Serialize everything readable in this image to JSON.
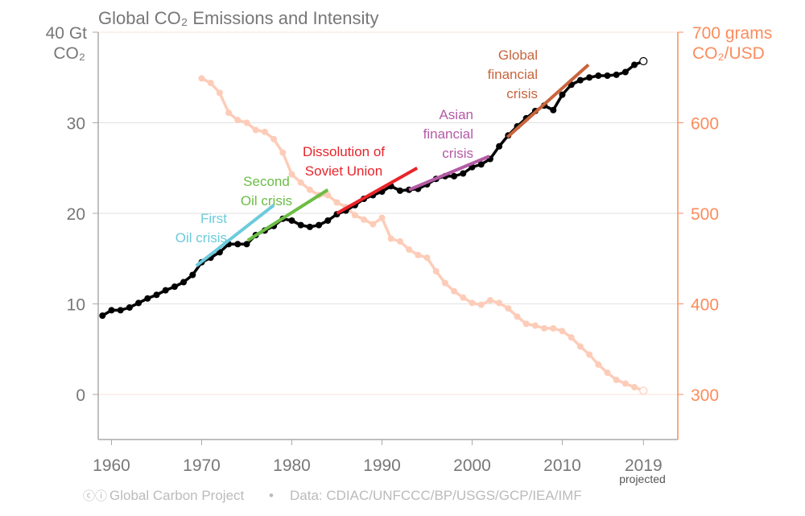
{
  "chart_data": {
    "type": "line",
    "title": "Global CO₂ Emissions and Intensity",
    "left_axis": {
      "label_line1": "40 Gt",
      "label_line2": "CO₂",
      "ticks": [
        0,
        10,
        20,
        30
      ],
      "top_tick": 40,
      "ylim": [
        -5,
        40
      ]
    },
    "right_axis": {
      "label_line1": "700 grams",
      "label_line2": "CO₂/USD",
      "ticks": [
        300,
        400,
        500,
        600
      ],
      "top_tick": 700,
      "ylim": [
        250,
        700
      ],
      "color": "#fb8c5c"
    },
    "x_axis": {
      "ticks": [
        "1960",
        "1970",
        "1980",
        "1990",
        "2000",
        "2010",
        "2019"
      ],
      "tick_values": [
        1960,
        1970,
        1980,
        1990,
        2000,
        2010,
        2019
      ],
      "sublabel": "projected",
      "xlim": [
        1958.7,
        2022.8
      ]
    },
    "grid": true,
    "series": [
      {
        "axis": "left",
        "color": "#000000",
        "x": [
          1959,
          1960,
          1961,
          1962,
          1963,
          1964,
          1965,
          1966,
          1967,
          1968,
          1969,
          1970,
          1971,
          1972,
          1973,
          1974,
          1975,
          1976,
          1977,
          1978,
          1979,
          1980,
          1981,
          1982,
          1983,
          1984,
          1985,
          1986,
          1987,
          1988,
          1989,
          1990,
          1991,
          1992,
          1993,
          1994,
          1995,
          1996,
          1997,
          1998,
          1999,
          2000,
          2001,
          2002,
          2003,
          2004,
          2005,
          2006,
          2007,
          2008,
          2009,
          2010,
          2011,
          2012,
          2013,
          2014,
          2015,
          2016,
          2017,
          2018,
          2019
        ],
        "values": [
          8.7,
          9.3,
          9.3,
          9.6,
          10.1,
          10.6,
          11.0,
          11.5,
          11.9,
          12.4,
          13.2,
          14.6,
          15.1,
          15.7,
          16.6,
          16.6,
          16.6,
          17.6,
          18.1,
          18.6,
          19.4,
          19.2,
          18.7,
          18.5,
          18.7,
          19.2,
          19.9,
          20.3,
          20.9,
          21.6,
          22.0,
          22.4,
          23.0,
          22.5,
          22.6,
          22.7,
          23.2,
          23.8,
          24.1,
          24.1,
          24.4,
          25.1,
          25.4,
          26.0,
          27.4,
          28.6,
          29.6,
          30.5,
          31.3,
          31.9,
          31.4,
          33.1,
          34.2,
          34.7,
          35.0,
          35.2,
          35.2,
          35.3,
          35.6,
          36.4,
          36.8
        ],
        "projected_last": true
      },
      {
        "axis": "right",
        "color": "#fdccb8",
        "x": [
          1970,
          1971,
          1972,
          1973,
          1974,
          1975,
          1976,
          1977,
          1978,
          1979,
          1980,
          1981,
          1982,
          1983,
          1984,
          1985,
          1986,
          1987,
          1988,
          1989,
          1990,
          1991,
          1992,
          1993,
          1994,
          1995,
          1996,
          1997,
          1998,
          1999,
          2000,
          2001,
          2002,
          2003,
          2004,
          2005,
          2006,
          2007,
          2008,
          2009,
          2010,
          2011,
          2012,
          2013,
          2014,
          2015,
          2016,
          2017,
          2018,
          2019
        ],
        "values": [
          649,
          644,
          633,
          611,
          603,
          600,
          592,
          590,
          582,
          567,
          543,
          534,
          526,
          520,
          520,
          512,
          507,
          498,
          493,
          488,
          495,
          472,
          469,
          460,
          454,
          451,
          436,
          423,
          414,
          407,
          401,
          399,
          404,
          401,
          395,
          386,
          378,
          376,
          373,
          373,
          370,
          363,
          353,
          344,
          333,
          324,
          316,
          312,
          308,
          304
        ],
        "projected_last": true
      }
    ],
    "annotations": [
      {
        "lines": [
          "First",
          "Oil crisis"
        ],
        "color": "#6ccbdc",
        "trend": [
          [
            1969.4,
            14.2
          ],
          [
            1978.0,
            20.9
          ]
        ]
      },
      {
        "lines": [
          "Second",
          "Oil crisis"
        ],
        "color": "#6cbd45",
        "trend": [
          [
            1975.1,
            17.0
          ],
          [
            1984.0,
            22.6
          ]
        ]
      },
      {
        "lines": [
          "Dissolution of",
          "Soviet Union"
        ],
        "color": "#e8242a",
        "trend": [
          [
            1985.0,
            20.0
          ],
          [
            1993.9,
            25.0
          ]
        ]
      },
      {
        "lines": [
          "Asian",
          "financial",
          "crisis"
        ],
        "color": "#b45aa5",
        "trend": [
          [
            1993.0,
            22.6
          ],
          [
            2001.9,
            26.3
          ]
        ]
      },
      {
        "lines": [
          "Global",
          "financial",
          "crisis"
        ],
        "color": "#c8643c",
        "trend": [
          [
            2003.9,
            28.4
          ],
          [
            2012.9,
            36.4
          ]
        ]
      }
    ],
    "footer": {
      "credit": "Global Carbon Project",
      "separator": "•",
      "source": "Data: CDIAC/UNFCCC/BP/USGS/GCP/IEA/IMF"
    }
  }
}
